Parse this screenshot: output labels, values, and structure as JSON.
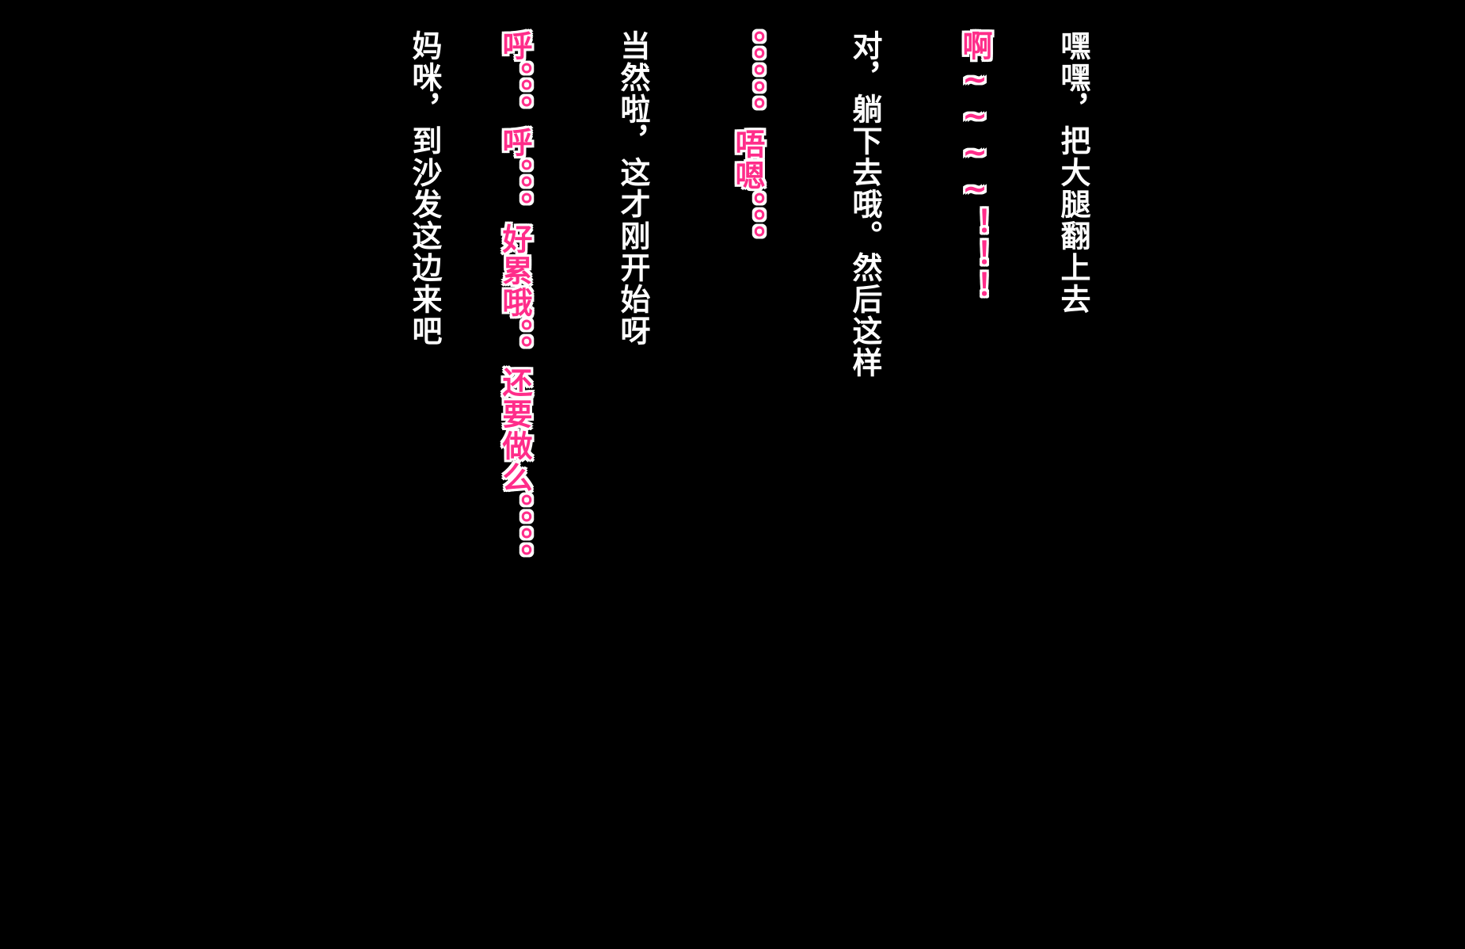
{
  "lines": [
    {
      "text": "嘿嘿，把大腿翻上去",
      "color": "#ffffff"
    },
    {
      "text": "啊~~~~！！！",
      "color": "#ff2d8a"
    },
    {
      "text": "对，躺下去哦。然后这样",
      "color": "#ffffff"
    },
    {
      "text": "。。。。。唔嗯。。。",
      "color": "#ff2d8a"
    },
    {
      "text": "当然啦，这才刚开始呀",
      "color": "#ffffff"
    },
    {
      "text": "呼。。。呼。。。好累哦。。还要做么。。。。",
      "color": "#ff2d8a"
    },
    {
      "text": "妈咪，到沙发这边来吧",
      "color": "#ffffff"
    }
  ]
}
